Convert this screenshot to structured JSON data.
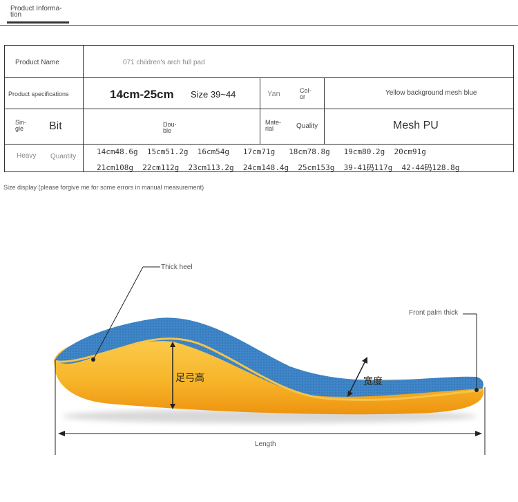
{
  "header": {
    "tab_title": "Product Informa-\ntion"
  },
  "table": {
    "product_name_label": "Product Name",
    "product_name_value": "071 children's arch full pad",
    "spec_label": "Product specifications",
    "spec_size_range": "14cm-25cm",
    "spec_size_codes": "Size 39~44",
    "color_label_yan": "Yan",
    "color_label_color": "Col-\nor",
    "color_value": "Yellow background mesh blue",
    "single_label": "Sin-\ngle",
    "bit_value": "Bit",
    "double_value": "Dou-\nble",
    "material_label": "Mate-\nrial",
    "quality_label": "Quality",
    "material_value": "Mesh PU",
    "heavy_label": "Heavy",
    "quantity_label": "Quantity",
    "weights_row1": "14cm48.6g  15cm51.2g  16cm54g   17cm71g   18cm78.8g   19cm80.2g  20cm91g",
    "weights_row2": "21cm108g  22cm112g  23cm113.2g  24cm148.4g  25cm153g  39-41码117g  42-44码128.8g"
  },
  "size_note": "Size display (please forgive me for some errors in manual measurement)",
  "diagram": {
    "thick_heel": "Thick heel",
    "front_palm": "Front palm thick",
    "arch_height": "足弓高",
    "width": "宽度",
    "length": "Length",
    "colors": {
      "mesh_blue": "#3f86c9",
      "foam_yellow": "#f7b52a",
      "foam_orange": "#f29a12"
    }
  }
}
